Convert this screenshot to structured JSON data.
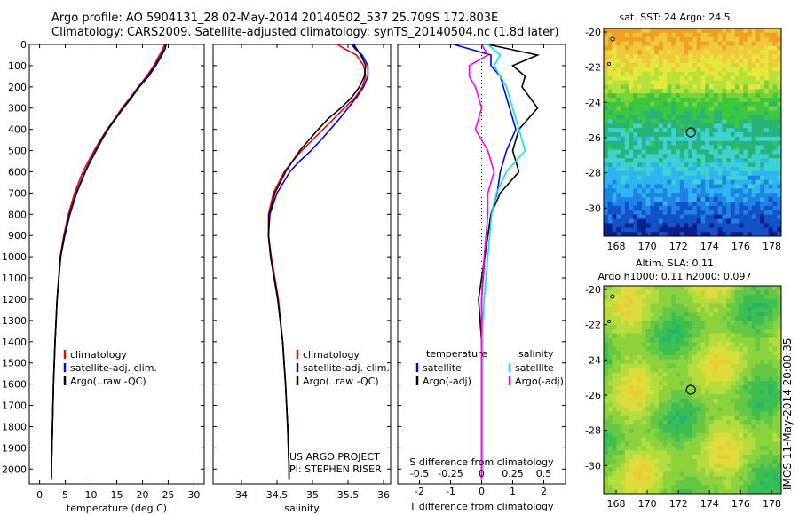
{
  "header": {
    "title_line1": "Argo profile: AO 5904131_28 02-May-2014 20140502_537 25.709S 172.803E",
    "title_line2": "Climatology: CARS2009. Satellite-adjusted climatology: synTS_20140504.nc (1.8d later)"
  },
  "colors": {
    "climatology": "#ff0000",
    "satellite": "#0000ff",
    "argo": "#000000",
    "sat_s": "#00e5ee",
    "argo_s": "#ff00ff"
  },
  "chart_data": [
    {
      "type": "line",
      "name": "temperature",
      "xlabel": "temperature (deg C)",
      "xlim": [
        -2,
        32
      ],
      "xticks": [
        "0",
        "5",
        "10",
        "15",
        "20",
        "25",
        "30"
      ],
      "ylim": [
        2070,
        0
      ],
      "yticks": [
        "0",
        "100",
        "200",
        "300",
        "400",
        "500",
        "600",
        "700",
        "800",
        "900",
        "1000",
        "1100",
        "1200",
        "1300",
        "1400",
        "1500",
        "1600",
        "1700",
        "1800",
        "1900",
        "2000"
      ],
      "legend": [
        "climatology",
        "satellite-adj. clim.",
        "Argo(..raw -QC)"
      ],
      "depth": [
        0,
        20,
        50,
        100,
        150,
        200,
        250,
        300,
        350,
        400,
        450,
        500,
        550,
        600,
        700,
        800,
        900,
        1000,
        1200,
        1400,
        1600,
        1800,
        2000,
        2050
      ],
      "series": [
        {
          "name": "climatology",
          "values": [
            24.3,
            24.0,
            23.3,
            22.2,
            20.8,
            19.2,
            17.6,
            16.0,
            14.6,
            13.1,
            11.8,
            10.6,
            9.5,
            8.4,
            6.8,
            5.6,
            4.7,
            4.0,
            3.4,
            3.0,
            2.7,
            2.5,
            2.3,
            2.3
          ]
        },
        {
          "name": "satellite-adj. clim.",
          "values": [
            24.5,
            24.3,
            23.6,
            22.4,
            21.0,
            19.3,
            17.8,
            16.2,
            14.7,
            13.2,
            12.0,
            10.9,
            9.8,
            8.8,
            7.1,
            5.8,
            4.8,
            4.1,
            3.4,
            3.0,
            2.7,
            2.5,
            2.3,
            2.3
          ]
        },
        {
          "name": "Argo(..raw -QC)",
          "values": [
            24.6,
            24.4,
            23.8,
            22.6,
            21.2,
            19.4,
            17.9,
            16.3,
            14.8,
            13.3,
            12.1,
            11.0,
            9.9,
            8.9,
            7.2,
            5.9,
            4.9,
            4.1,
            3.4,
            3.0,
            2.7,
            2.5,
            2.3,
            2.3
          ]
        }
      ]
    },
    {
      "type": "line",
      "name": "salinity",
      "xlabel": "salinity",
      "xlim": [
        33.6,
        36.1
      ],
      "xticks": [
        "34",
        "34.5",
        "35",
        "35.5",
        "36"
      ],
      "ylim": [
        2070,
        0
      ],
      "legend": [
        "climatology",
        "satellite-adj. clim.",
        "Argo(..raw -QC)"
      ],
      "annotation": "US ARGO PROJECT\nPI: STEPHEN RISER",
      "depth": [
        0,
        20,
        50,
        100,
        150,
        200,
        250,
        300,
        350,
        400,
        450,
        500,
        550,
        600,
        700,
        800,
        900,
        1000,
        1200,
        1400,
        1600,
        1800,
        2000,
        2050
      ],
      "series": [
        {
          "name": "climatology",
          "values": [
            35.35,
            35.45,
            35.62,
            35.72,
            35.75,
            35.7,
            35.6,
            35.45,
            35.3,
            35.15,
            35.0,
            34.85,
            34.72,
            34.6,
            34.45,
            34.38,
            34.38,
            34.42,
            34.52,
            34.58,
            34.62,
            34.65,
            34.67,
            34.67
          ]
        },
        {
          "name": "satellite-adj. clim.",
          "values": [
            35.55,
            35.6,
            35.7,
            35.78,
            35.78,
            35.72,
            35.62,
            35.5,
            35.38,
            35.25,
            35.12,
            34.98,
            34.82,
            34.68,
            34.5,
            34.4,
            34.38,
            34.41,
            34.51,
            34.58,
            34.62,
            34.65,
            34.67,
            34.67
          ]
        },
        {
          "name": "Argo(..raw -QC)",
          "values": [
            35.58,
            35.62,
            35.68,
            35.75,
            35.73,
            35.66,
            35.55,
            35.4,
            35.22,
            35.08,
            34.95,
            34.82,
            34.72,
            34.62,
            34.47,
            34.39,
            34.38,
            34.41,
            34.51,
            34.58,
            34.62,
            34.65,
            34.67,
            34.67
          ]
        }
      ]
    },
    {
      "type": "line",
      "name": "difference",
      "xlabel": "T difference from climatology",
      "xlabel2": "S difference from climatology",
      "xlim": [
        -2.7,
        2.7
      ],
      "xticks": [
        "-2",
        "-1",
        "0",
        "1",
        "2"
      ],
      "xticks2": [
        "-0.5",
        "-0.25",
        "0",
        "0.25",
        "0.5"
      ],
      "ylim": [
        2070,
        0
      ],
      "legend_title_left": "temperature",
      "legend_title_right": "salinity",
      "legend": [
        "satellite",
        "Argo(-adj)",
        "satellite",
        "Argo(-adj)"
      ],
      "depth": [
        0,
        50,
        100,
        150,
        200,
        300,
        400,
        500,
        600,
        700,
        800,
        1000,
        1200,
        1400,
        1600,
        1800,
        2000,
        2050
      ],
      "series": [
        {
          "name": "T satellite",
          "values": [
            -0.9,
            0.3,
            0.3,
            0.6,
            0.7,
            0.9,
            1.1,
            0.8,
            0.6,
            0.5,
            0.3,
            0.1,
            0.0,
            0.0,
            0.0,
            0.0,
            0.0,
            0.0
          ]
        },
        {
          "name": "T Argo(-adj)",
          "values": [
            0.2,
            1.8,
            1.0,
            1.4,
            1.3,
            1.8,
            1.2,
            1.0,
            1.2,
            0.6,
            0.3,
            0.1,
            -0.1,
            0.0,
            0.0,
            0.0,
            0.0,
            0.0
          ]
        },
        {
          "name": "S satellite",
          "values": [
            0.05,
            0.15,
            0.1,
            0.15,
            0.2,
            0.25,
            0.3,
            0.35,
            0.2,
            0.12,
            0.08,
            0.05,
            0.02,
            0.0,
            0.0,
            0.0,
            0.0,
            0.0
          ]
        },
        {
          "name": "S Argo(-adj)",
          "values": [
            0.0,
            0.05,
            -0.1,
            -0.1,
            -0.05,
            0.0,
            -0.05,
            0.05,
            0.1,
            0.05,
            0.05,
            0.02,
            0.0,
            0.0,
            0.0,
            0.0,
            0.0,
            0.0
          ]
        }
      ]
    },
    {
      "type": "heatmap",
      "name": "sst_map",
      "title": "sat. SST: 24 Argo: 24.5",
      "xticks": [
        "168",
        "170",
        "172",
        "174",
        "176",
        "178"
      ],
      "yticks": [
        "-20",
        "-22",
        "-24",
        "-26",
        "-28",
        "-30"
      ],
      "marker": {
        "lon": 172.8,
        "lat": -25.7
      }
    },
    {
      "type": "heatmap",
      "name": "sla_map",
      "title": "Altim. SLA: 0.11",
      "subtitle": "Argo h1000: 0.11 h2000: 0.097",
      "xticks": [
        "168",
        "170",
        "172",
        "174",
        "176",
        "178"
      ],
      "yticks": [
        "-20",
        "-22",
        "-24",
        "-26",
        "-28",
        "-30"
      ],
      "marker": {
        "lon": 172.8,
        "lat": -25.7
      }
    }
  ],
  "stamp": "IMOS 11-May-2014 20:00:35"
}
